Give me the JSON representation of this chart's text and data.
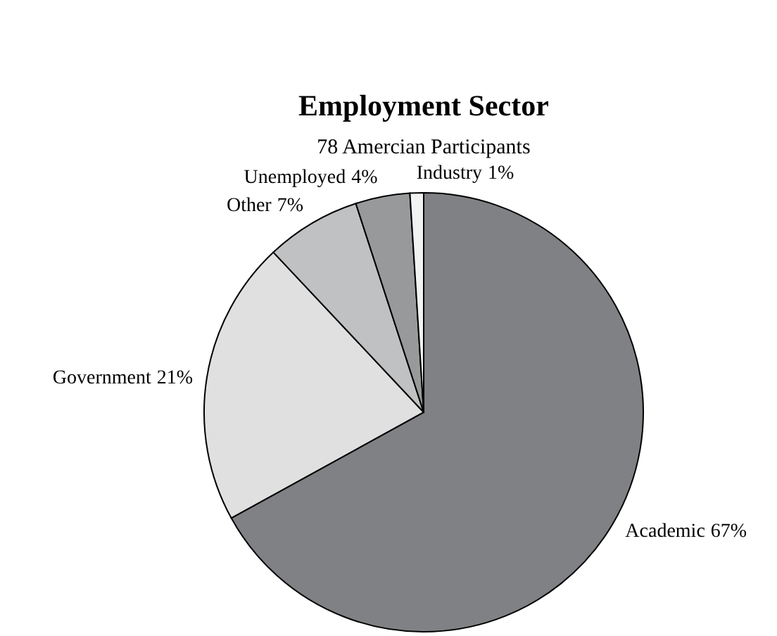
{
  "chart_data": {
    "type": "pie",
    "title": "Employment Sector",
    "subtitle": "78 Amercian Participants",
    "categories": [
      "Academic",
      "Government",
      "Other",
      "Unemployed",
      "Industry"
    ],
    "values": [
      67,
      21,
      7,
      4,
      1
    ],
    "colors": [
      "#808184",
      "#e0e0e0",
      "#c0c1c3",
      "#98999b",
      "#f2f2f2"
    ],
    "value_labels": [
      "67%",
      "21%",
      "7%",
      "4%",
      "1%"
    ]
  }
}
